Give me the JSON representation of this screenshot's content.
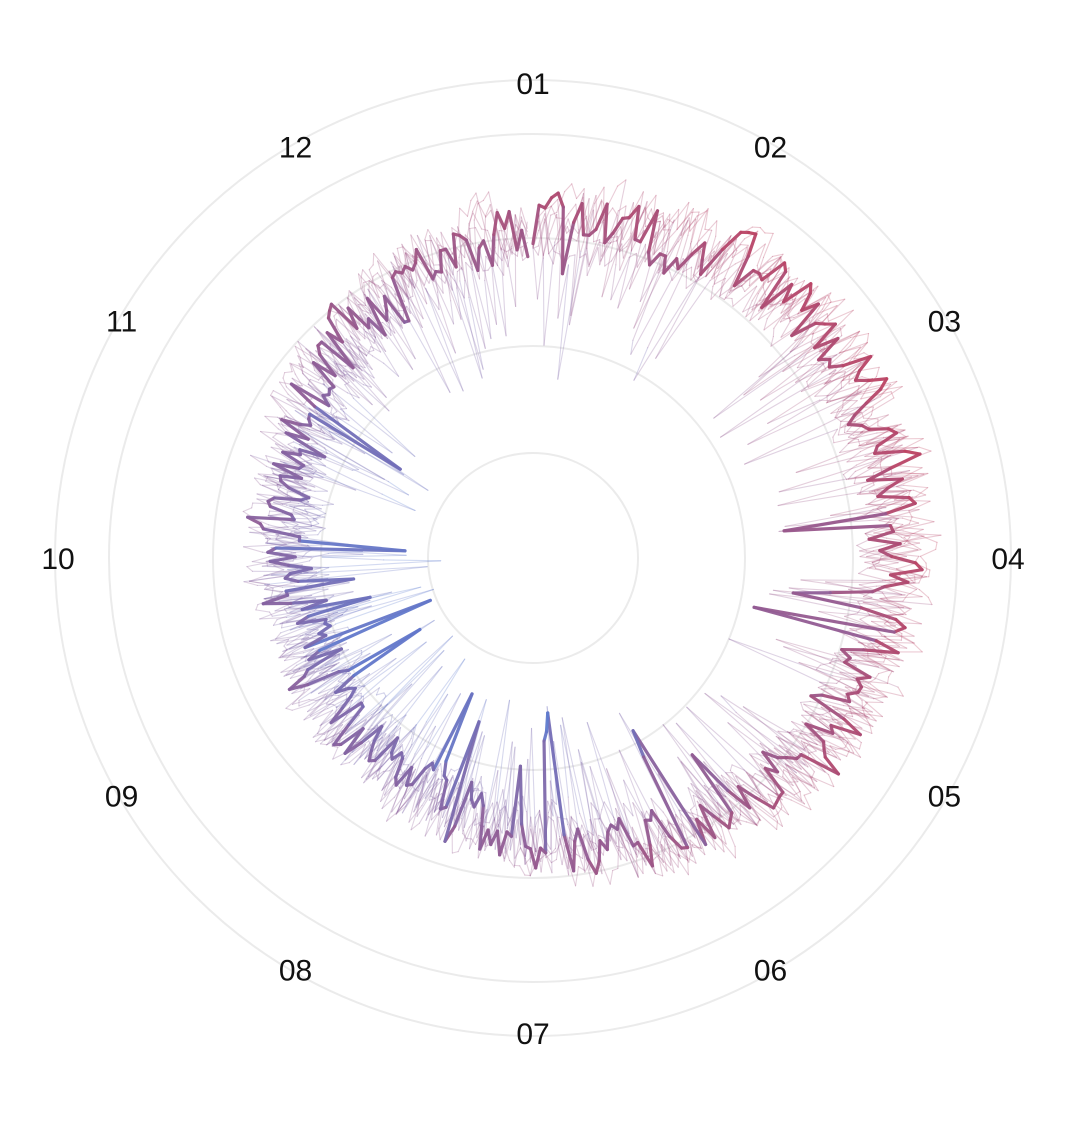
{
  "chart_data": {
    "type": "line",
    "coordinate_system": "polar",
    "title": "",
    "angular_axis": {
      "labels": [
        "01",
        "02",
        "03",
        "04",
        "05",
        "06",
        "07",
        "08",
        "09",
        "10",
        "11",
        "12"
      ],
      "direction": "clockwise",
      "start": "top"
    },
    "radial_range": [
      -0.3,
      1.05
    ],
    "radial_gridlines": 6,
    "grid": true,
    "legend": "none",
    "colors": {
      "high": "#c2405c",
      "low": "#5d7cd1",
      "grid": "#ebebeb",
      "background": "#ffffff"
    },
    "series": [
      {
        "highlight": false,
        "seed": 11
      },
      {
        "highlight": false,
        "seed": 23
      },
      {
        "highlight": false,
        "seed": 37
      },
      {
        "highlight": false,
        "seed": 41
      },
      {
        "highlight": false,
        "seed": 59
      },
      {
        "highlight": false,
        "seed": 67
      },
      {
        "highlight": false,
        "seed": 73
      },
      {
        "highlight": false,
        "seed": 89
      },
      {
        "highlight": true,
        "seed": 101
      }
    ]
  }
}
